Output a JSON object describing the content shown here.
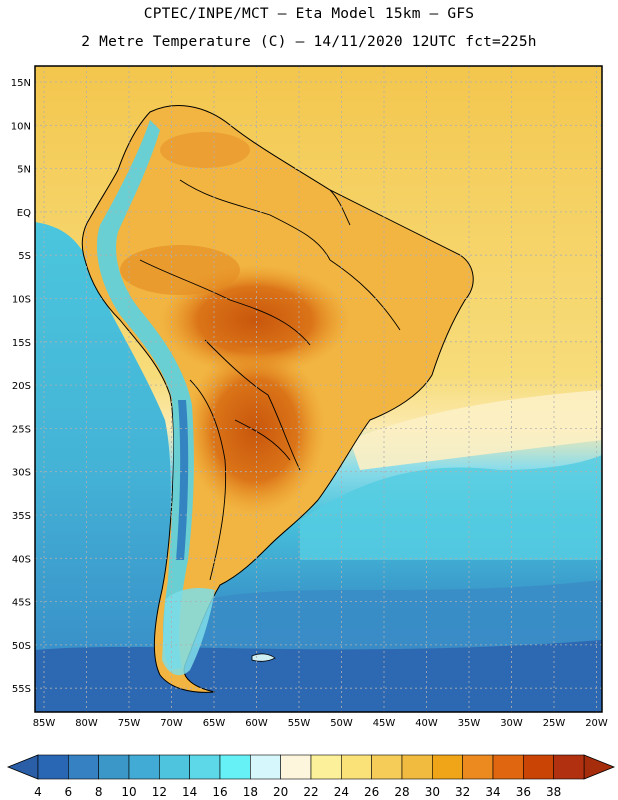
{
  "header": {
    "line1": "CPTEC/INPE/MCT –  Eta Model 15km – GFS",
    "line2": "2 Metre Temperature (C) – 14/11/2020 12UTC fct=225h"
  },
  "axes": {
    "lat_labels": [
      "15N",
      "10N",
      "5N",
      "EQ",
      "5S",
      "10S",
      "15S",
      "20S",
      "25S",
      "30S",
      "35S",
      "40S",
      "45S",
      "50S",
      "55S"
    ],
    "lon_labels": [
      "85W",
      "80W",
      "75W",
      "70W",
      "65W",
      "60W",
      "55W",
      "50W",
      "45W",
      "40W",
      "35W",
      "30W",
      "25W",
      "20W"
    ]
  },
  "colorbar": {
    "labels": [
      "4",
      "6",
      "8",
      "10",
      "12",
      "14",
      "16",
      "18",
      "20",
      "22",
      "24",
      "26",
      "28",
      "30",
      "32",
      "34",
      "36",
      "38"
    ],
    "colors": [
      "#2966b4",
      "#3581c2",
      "#3c97c9",
      "#42abd5",
      "#4ec4df",
      "#5dd8e8",
      "#65f1f5",
      "#d6f8fc",
      "#fdf6dd",
      "#fdf09a",
      "#fbe278",
      "#f5cc58",
      "#f0bb3f",
      "#f0a418",
      "#ec8a20",
      "#e06610",
      "#c94405",
      "#b03010"
    ]
  },
  "colors": {
    "ocean_warm": "#f2c94c",
    "ocean_cool": "#46b9d5",
    "ocean_cold": "#2f6fb5",
    "land_hot": "#d46a15",
    "land_mild": "#f1b845",
    "andes": "#58cfe0"
  }
}
